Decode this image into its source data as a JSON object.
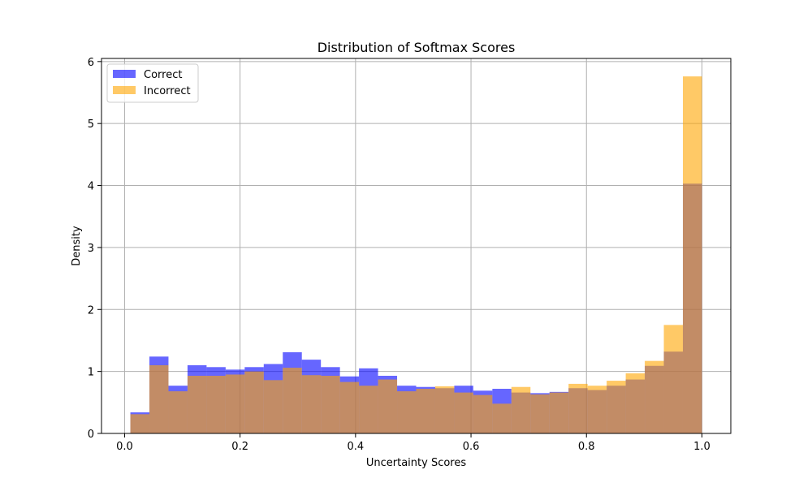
{
  "chart_data": {
    "type": "bar",
    "title": "Distribution of Softmax Scores",
    "xlabel": "Uncertainty Scores",
    "ylabel": "Density",
    "xlim": [
      -0.04,
      1.05
    ],
    "ylim": [
      0,
      6.05
    ],
    "xticks": [
      0.0,
      0.2,
      0.4,
      0.6,
      0.8,
      1.0
    ],
    "xtick_labels": [
      "0.0",
      "0.2",
      "0.4",
      "0.6",
      "0.8",
      "1.0"
    ],
    "yticks": [
      0,
      1,
      2,
      3,
      4,
      5,
      6
    ],
    "ytick_labels": [
      "0",
      "1",
      "2",
      "3",
      "4",
      "5",
      "6"
    ],
    "grid": true,
    "legend_position": "top-left",
    "bin_edges": [
      0.01,
      0.043,
      0.076,
      0.109,
      0.142,
      0.175,
      0.208,
      0.241,
      0.274,
      0.307,
      0.34,
      0.373,
      0.406,
      0.439,
      0.472,
      0.505,
      0.538,
      0.571,
      0.604,
      0.637,
      0.67,
      0.703,
      0.736,
      0.769,
      0.802,
      0.835,
      0.868,
      0.901,
      0.934,
      0.967,
      1.0
    ],
    "series": [
      {
        "name": "Correct",
        "color": "#0000ff",
        "opacity": 0.6,
        "values": [
          0.34,
          1.24,
          0.77,
          1.1,
          1.07,
          1.03,
          1.07,
          1.12,
          1.31,
          1.19,
          1.07,
          0.92,
          1.05,
          0.93,
          0.77,
          0.75,
          0.73,
          0.77,
          0.69,
          0.72,
          0.66,
          0.65,
          0.67,
          0.73,
          0.7,
          0.77,
          0.87,
          1.09,
          1.32,
          4.03
        ]
      },
      {
        "name": "Incorrect",
        "color": "#ffa500",
        "opacity": 0.6,
        "values": [
          0.31,
          1.1,
          0.68,
          0.93,
          0.93,
          0.95,
          1.0,
          0.86,
          1.06,
          0.94,
          0.93,
          0.83,
          0.77,
          0.87,
          0.68,
          0.72,
          0.76,
          0.66,
          0.62,
          0.48,
          0.75,
          0.63,
          0.66,
          0.8,
          0.77,
          0.85,
          0.97,
          1.17,
          1.75,
          5.76
        ]
      }
    ]
  }
}
